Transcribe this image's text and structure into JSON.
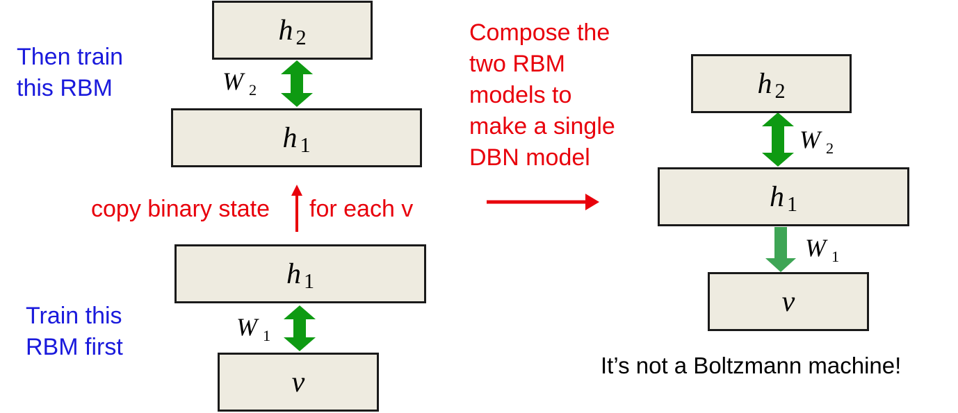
{
  "left_top": {
    "note_lines": [
      "Then train",
      "this RBM"
    ],
    "upper_box": {
      "base": "h",
      "sub": "2"
    },
    "lower_box": {
      "base": "h",
      "sub": "1"
    },
    "weight": {
      "base": "W",
      "sub": "2"
    }
  },
  "copy": {
    "left_text": "copy binary state",
    "right_text": "for each v"
  },
  "left_bottom": {
    "note_lines": [
      "Train this",
      "RBM first"
    ],
    "upper_box": {
      "base": "h",
      "sub": "1"
    },
    "lower_box": {
      "base": "v"
    },
    "weight": {
      "base": "W",
      "sub": "1"
    }
  },
  "compose_note": [
    "Compose the",
    "two RBM",
    "models to",
    "make a single",
    "DBN model"
  ],
  "right": {
    "top_box": {
      "base": "h",
      "sub": "2"
    },
    "middle_box": {
      "base": "h",
      "sub": "1"
    },
    "bottom_box": {
      "base": "v"
    },
    "weight_top": {
      "base": "W",
      "sub": "2"
    },
    "weight_bottom": {
      "base": "W",
      "sub": "1"
    },
    "caption": "It’s not a Boltzmann machine!"
  },
  "colors": {
    "arrow_green": "#0e9a12",
    "arrow_directed": "#3ea555",
    "red": "#e8000b",
    "blue": "#1a1adc",
    "box_fill": "#eeebe0"
  }
}
